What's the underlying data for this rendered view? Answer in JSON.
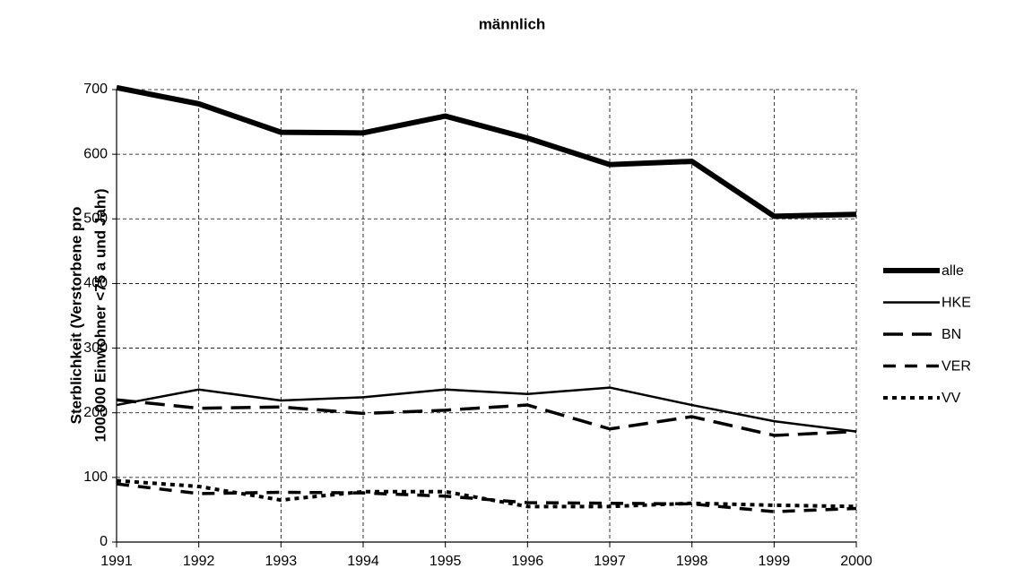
{
  "chart_data": {
    "type": "line",
    "title": "männlich",
    "ylabel": [
      "Sterblichkeit (Verstorbene pro",
      "100.000 Einwohner <75 a und Jahr)"
    ],
    "categories": [
      "1991",
      "1992",
      "1993",
      "1994",
      "1995",
      "1996",
      "1997",
      "1998",
      "1999",
      "2000"
    ],
    "ylim": [
      0,
      700
    ],
    "yticks": [
      0,
      100,
      200,
      300,
      400,
      500,
      600,
      700
    ],
    "grid": true,
    "legend": "right",
    "series": [
      {
        "name": "alle",
        "color": "#000000",
        "width": 6,
        "dash": "none",
        "values": [
          703,
          678,
          634,
          633,
          659,
          625,
          584,
          589,
          504,
          507
        ]
      },
      {
        "name": "HKE",
        "color": "#000000",
        "width": 2.5,
        "dash": "none",
        "values": [
          212,
          236,
          219,
          224,
          236,
          229,
          239,
          212,
          187,
          171
        ]
      },
      {
        "name": "BN",
        "color": "#000000",
        "width": 3.5,
        "dash": "22,10",
        "values": [
          220,
          207,
          209,
          199,
          204,
          212,
          175,
          194,
          165,
          171
        ]
      },
      {
        "name": "VER",
        "color": "#000000",
        "width": 3.5,
        "dash": "14,10",
        "values": [
          90,
          75,
          77,
          76,
          71,
          61,
          60,
          59,
          47,
          52
        ]
      },
      {
        "name": "VV",
        "color": "#000000",
        "width": 4,
        "dash": "5,5",
        "values": [
          95,
          86,
          65,
          78,
          78,
          55,
          55,
          60,
          57,
          55
        ]
      }
    ]
  }
}
